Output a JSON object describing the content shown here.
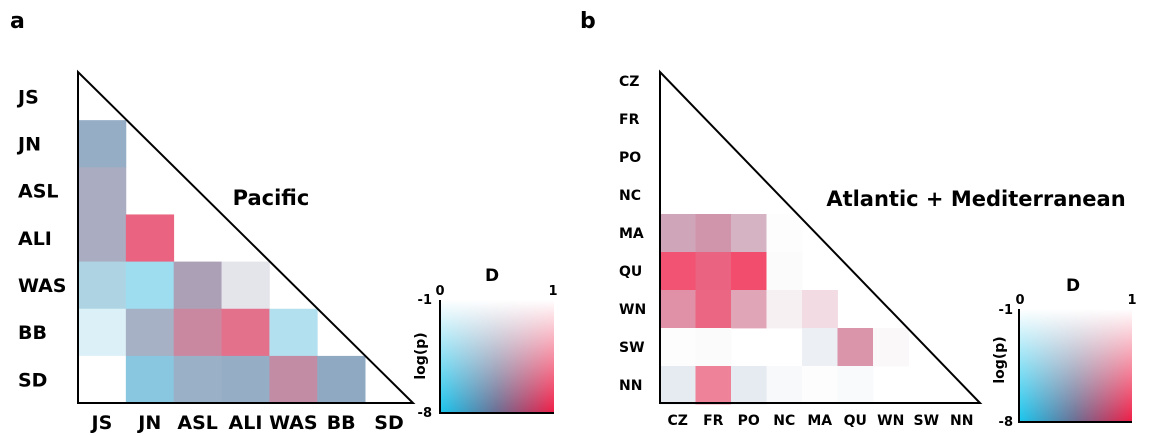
{
  "chart_data": [
    {
      "type": "heatmap",
      "panel": "a",
      "title": "Pacific",
      "categories": [
        "JS",
        "JN",
        "ASL",
        "ALI",
        "WAS",
        "BB",
        "SD"
      ],
      "cells": [
        {
          "row": "JN",
          "col": "JS",
          "d": 0.4,
          "logp": -5.5
        },
        {
          "row": "ASL",
          "col": "JS",
          "d": 0.5,
          "logp": -5.0
        },
        {
          "row": "ALI",
          "col": "JS",
          "d": 0.5,
          "logp": -5.0
        },
        {
          "row": "ALI",
          "col": "JN",
          "d": 0.95,
          "logp": -6.0
        },
        {
          "row": "WAS",
          "col": "JS",
          "d": 0.25,
          "logp": -4.0
        },
        {
          "row": "WAS",
          "col": "JN",
          "d": 0.1,
          "logp": -4.2
        },
        {
          "row": "WAS",
          "col": "ASL",
          "d": 0.55,
          "logp": -5.3
        },
        {
          "row": "WAS",
          "col": "ALI",
          "d": 0.5,
          "logp": -2.3
        },
        {
          "row": "BB",
          "col": "JS",
          "d": 0.15,
          "logp": -2.2
        },
        {
          "row": "BB",
          "col": "JN",
          "d": 0.45,
          "logp": -5.0
        },
        {
          "row": "BB",
          "col": "ASL",
          "d": 0.75,
          "logp": -5.5
        },
        {
          "row": "BB",
          "col": "ALI",
          "d": 0.9,
          "logp": -5.7
        },
        {
          "row": "BB",
          "col": "WAS",
          "d": 0.15,
          "logp": -3.6
        },
        {
          "row": "SD",
          "col": "JS",
          "d": 0.5,
          "logp": -1.0
        },
        {
          "row": "SD",
          "col": "JN",
          "d": 0.2,
          "logp": -5.2
        },
        {
          "row": "SD",
          "col": "ASL",
          "d": 0.4,
          "logp": -5.3
        },
        {
          "row": "SD",
          "col": "ALI",
          "d": 0.4,
          "logp": -5.5
        },
        {
          "row": "SD",
          "col": "WAS",
          "d": 0.7,
          "logp": -5.5
        },
        {
          "row": "SD",
          "col": "BB",
          "d": 0.4,
          "logp": -5.7
        }
      ],
      "legend": {
        "title": "D",
        "ylabel": "log(p)",
        "x_ticks": [
          "0",
          "1"
        ],
        "y_ticks": [
          "-1",
          "-8"
        ]
      }
    },
    {
      "type": "heatmap",
      "panel": "b",
      "title": "Atlantic + Mediterranean",
      "categories": [
        "CZ",
        "FR",
        "PO",
        "NC",
        "MA",
        "QU",
        "WN",
        "SW",
        "NN"
      ],
      "cells": [
        {
          "row": "MA",
          "col": "CZ",
          "d": 0.7,
          "logp": -4.5
        },
        {
          "row": "MA",
          "col": "FR",
          "d": 0.75,
          "logp": -5.0
        },
        {
          "row": "MA",
          "col": "PO",
          "d": 0.7,
          "logp": -4.0
        },
        {
          "row": "MA",
          "col": "NC",
          "d": 0.5,
          "logp": -1.1
        },
        {
          "row": "QU",
          "col": "CZ",
          "d": 1.0,
          "logp": -6.3
        },
        {
          "row": "QU",
          "col": "FR",
          "d": 0.95,
          "logp": -6.0
        },
        {
          "row": "QU",
          "col": "PO",
          "d": 1.0,
          "logp": -6.5
        },
        {
          "row": "QU",
          "col": "NC",
          "d": 0.5,
          "logp": -1.2
        },
        {
          "row": "WN",
          "col": "CZ",
          "d": 0.85,
          "logp": -4.8
        },
        {
          "row": "WN",
          "col": "FR",
          "d": 0.95,
          "logp": -5.9
        },
        {
          "row": "WN",
          "col": "PO",
          "d": 0.8,
          "logp": -4.2
        },
        {
          "row": "WN",
          "col": "NC",
          "d": 0.7,
          "logp": -1.6
        },
        {
          "row": "WN",
          "col": "MA",
          "d": 0.8,
          "logp": -2.3
        },
        {
          "row": "SW",
          "col": "CZ",
          "d": 0.5,
          "logp": -1.1
        },
        {
          "row": "SW",
          "col": "FR",
          "d": 0.45,
          "logp": -1.2
        },
        {
          "row": "SW",
          "col": "MA",
          "d": 0.4,
          "logp": -1.8
        },
        {
          "row": "SW",
          "col": "QU",
          "d": 0.8,
          "logp": -4.8
        },
        {
          "row": "SW",
          "col": "WN",
          "d": 0.65,
          "logp": -1.3
        },
        {
          "row": "NN",
          "col": "CZ",
          "d": 0.4,
          "logp": -2.1
        },
        {
          "row": "NN",
          "col": "FR",
          "d": 0.95,
          "logp": -5.0
        },
        {
          "row": "NN",
          "col": "PO",
          "d": 0.4,
          "logp": -2.1
        },
        {
          "row": "NN",
          "col": "NC",
          "d": 0.45,
          "logp": -1.3
        },
        {
          "row": "NN",
          "col": "MA",
          "d": 0.45,
          "logp": -1.1
        },
        {
          "row": "NN",
          "col": "QU",
          "d": 0.4,
          "logp": -1.3
        }
      ],
      "legend": {
        "title": "D",
        "ylabel": "log(p)",
        "x_ticks": [
          "0",
          "1"
        ],
        "y_ticks": [
          "-1",
          "-8"
        ]
      }
    }
  ],
  "panel_labels": [
    "a",
    "b"
  ]
}
